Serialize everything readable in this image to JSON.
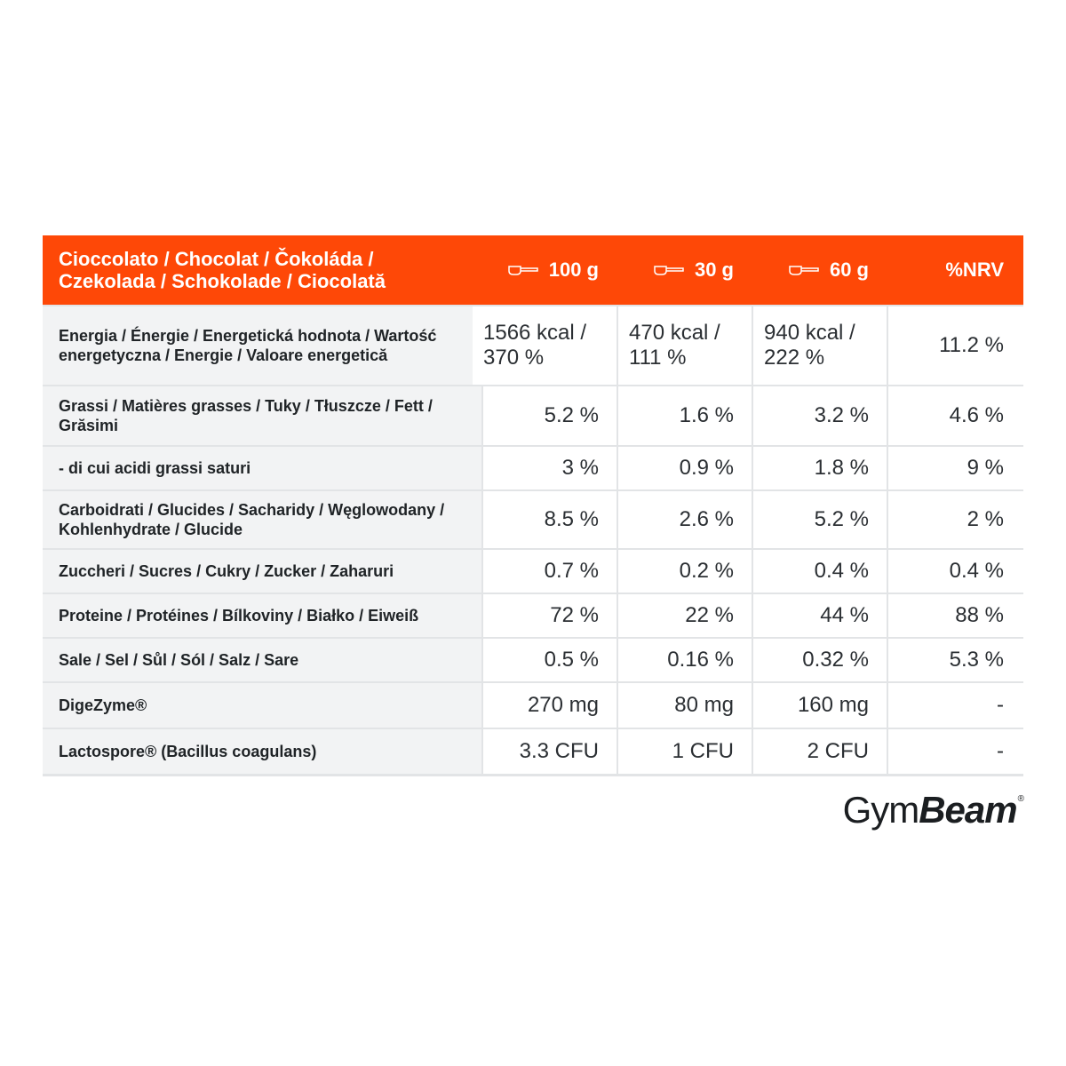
{
  "header": {
    "title_line1": "Cioccolato / Chocolat / Čokoláda /",
    "title_line2": "Czekolada / Schokolade / Ciocolată",
    "col1": "100 g",
    "col2": "30 g",
    "col3": "60 g",
    "col4": "%NRV"
  },
  "rows": [
    {
      "label": "Energia / Énergie / Energetická hodnota / Wartość energetyczna / Energie / Valoare energetică",
      "v1": "1566 kcal / 370 %",
      "v2": "470 kcal / 111 %",
      "v3": "940 kcal / 222 %",
      "v4": "11.2 %"
    },
    {
      "label": "Grassi / Matières grasses / Tuky / Tłuszcze / Fett / Grăsimi",
      "v1": "5.2 %",
      "v2": "1.6 %",
      "v3": "3.2 %",
      "v4": "4.6 %"
    },
    {
      "label": "- di cui acidi grassi saturi",
      "v1": "3 %",
      "v2": "0.9 %",
      "v3": "1.8 %",
      "v4": "9 %"
    },
    {
      "label": "Carboidrati / Glucides / Sacharidy / Węglowodany / Kohlenhydrate / Glucide",
      "v1": "8.5 %",
      "v2": "2.6 %",
      "v3": "5.2 %",
      "v4": "2 %"
    },
    {
      "label": "Zuccheri / Sucres / Cukry / Zucker / Zaharuri",
      "v1": "0.7 %",
      "v2": "0.2 %",
      "v3": "0.4 %",
      "v4": "0.4 %"
    },
    {
      "label": "Proteine / Protéines / Bílkoviny / Białko / Eiweiß",
      "v1": "72 %",
      "v2": "22 %",
      "v3": "44 %",
      "v4": "88 %"
    },
    {
      "label": "Sale / Sel / Sůl / Sól / Salz / Sare",
      "v1": "0.5 %",
      "v2": "0.16 %",
      "v3": "0.32 %",
      "v4": "5.3 %"
    },
    {
      "label": "DigeZyme®",
      "v1": "270 mg",
      "v2": "80 mg",
      "v3": "160 mg",
      "v4": "-"
    },
    {
      "label": "Lactospore® (Bacillus coagulans)",
      "v1": "3.3 CFU",
      "v2": "1 CFU",
      "v3": "2 CFU",
      "v4": "-"
    }
  ],
  "logo": {
    "text_light": "Gym",
    "text_bold": "Beam",
    "mark": "®"
  },
  "colors": {
    "accent": "#fe4807",
    "label_bg": "#f2f3f4",
    "border": "#e2e4e6"
  },
  "icons": {
    "scoop": "scoop-icon"
  }
}
